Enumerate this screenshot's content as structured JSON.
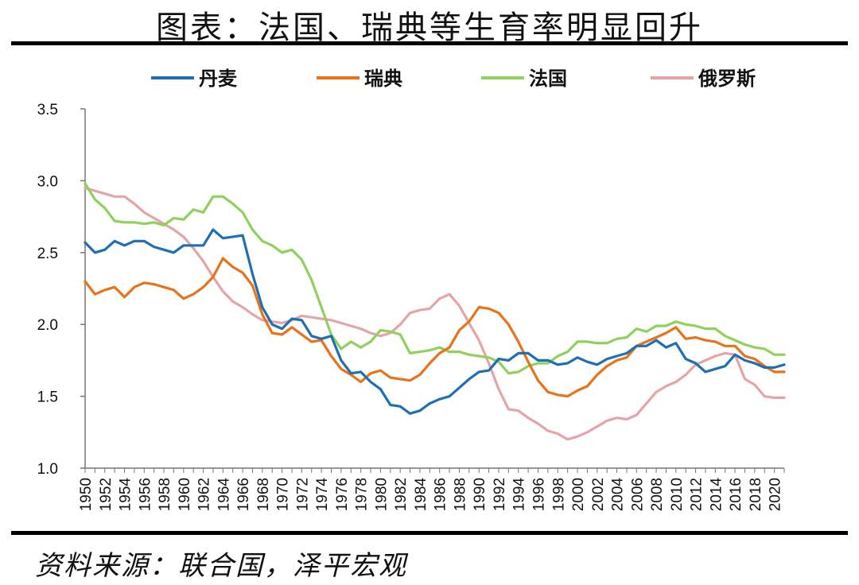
{
  "title": "图表：法国、瑞典等生育率明显回升",
  "source": "资料来源：联合国，泽平宏观",
  "chart_data": {
    "type": "line",
    "title": "图表：法国、瑞典等生育率明显回升",
    "xlabel": "",
    "ylabel": "",
    "xlim": [
      1950,
      2021
    ],
    "ylim": [
      1.0,
      3.5
    ],
    "yticks": [
      "1.0",
      "1.5",
      "2.0",
      "2.5",
      "3.0",
      "3.5"
    ],
    "xticks": [
      "1950",
      "1952",
      "1954",
      "1956",
      "1958",
      "1960",
      "1962",
      "1964",
      "1966",
      "1968",
      "1970",
      "1972",
      "1974",
      "1976",
      "1978",
      "1980",
      "1982",
      "1984",
      "1986",
      "1988",
      "1990",
      "1992",
      "1994",
      "1996",
      "1998",
      "2000",
      "2002",
      "2004",
      "2006",
      "2008",
      "2010",
      "2012",
      "2014",
      "2016",
      "2018",
      "2020"
    ],
    "grid": false,
    "legend_position": "top",
    "series": [
      {
        "name": "丹麦",
        "color": "#1f6fb5",
        "points": [
          [
            1950,
            2.57
          ],
          [
            1951,
            2.5
          ],
          [
            1952,
            2.52
          ],
          [
            1953,
            2.58
          ],
          [
            1954,
            2.55
          ],
          [
            1955,
            2.58
          ],
          [
            1956,
            2.58
          ],
          [
            1957,
            2.54
          ],
          [
            1958,
            2.52
          ],
          [
            1959,
            2.5
          ],
          [
            1960,
            2.55
          ],
          [
            1961,
            2.55
          ],
          [
            1962,
            2.55
          ],
          [
            1963,
            2.66
          ],
          [
            1964,
            2.6
          ],
          [
            1965,
            2.61
          ],
          [
            1966,
            2.62
          ],
          [
            1967,
            2.35
          ],
          [
            1968,
            2.12
          ],
          [
            1969,
            2.0
          ],
          [
            1970,
            1.97
          ],
          [
            1971,
            2.04
          ],
          [
            1972,
            2.03
          ],
          [
            1973,
            1.92
          ],
          [
            1974,
            1.9
          ],
          [
            1975,
            1.92
          ],
          [
            1976,
            1.75
          ],
          [
            1977,
            1.66
          ],
          [
            1978,
            1.67
          ],
          [
            1979,
            1.6
          ],
          [
            1980,
            1.55
          ],
          [
            1981,
            1.44
          ],
          [
            1982,
            1.43
          ],
          [
            1983,
            1.38
          ],
          [
            1984,
            1.4
          ],
          [
            1985,
            1.45
          ],
          [
            1986,
            1.48
          ],
          [
            1987,
            1.5
          ],
          [
            1988,
            1.56
          ],
          [
            1989,
            1.62
          ],
          [
            1990,
            1.67
          ],
          [
            1991,
            1.68
          ],
          [
            1992,
            1.76
          ],
          [
            1993,
            1.75
          ],
          [
            1994,
            1.8
          ],
          [
            1995,
            1.8
          ],
          [
            1996,
            1.75
          ],
          [
            1997,
            1.75
          ],
          [
            1998,
            1.72
          ],
          [
            1999,
            1.73
          ],
          [
            2000,
            1.77
          ],
          [
            2001,
            1.74
          ],
          [
            2002,
            1.72
          ],
          [
            2003,
            1.76
          ],
          [
            2004,
            1.78
          ],
          [
            2005,
            1.8
          ],
          [
            2006,
            1.85
          ],
          [
            2007,
            1.85
          ],
          [
            2008,
            1.89
          ],
          [
            2009,
            1.84
          ],
          [
            2010,
            1.87
          ],
          [
            2011,
            1.76
          ],
          [
            2012,
            1.73
          ],
          [
            2013,
            1.67
          ],
          [
            2014,
            1.69
          ],
          [
            2015,
            1.71
          ],
          [
            2016,
            1.79
          ],
          [
            2017,
            1.75
          ],
          [
            2018,
            1.73
          ],
          [
            2019,
            1.7
          ],
          [
            2020,
            1.7
          ],
          [
            2021,
            1.72
          ]
        ]
      },
      {
        "name": "瑞典",
        "color": "#e8731a",
        "points": [
          [
            1950,
            2.3
          ],
          [
            1951,
            2.21
          ],
          [
            1952,
            2.24
          ],
          [
            1953,
            2.26
          ],
          [
            1954,
            2.19
          ],
          [
            1955,
            2.26
          ],
          [
            1956,
            2.29
          ],
          [
            1957,
            2.28
          ],
          [
            1958,
            2.26
          ],
          [
            1959,
            2.24
          ],
          [
            1960,
            2.18
          ],
          [
            1961,
            2.21
          ],
          [
            1962,
            2.26
          ],
          [
            1963,
            2.33
          ],
          [
            1964,
            2.46
          ],
          [
            1965,
            2.4
          ],
          [
            1966,
            2.36
          ],
          [
            1967,
            2.27
          ],
          [
            1968,
            2.07
          ],
          [
            1969,
            1.94
          ],
          [
            1970,
            1.93
          ],
          [
            1971,
            1.98
          ],
          [
            1972,
            1.93
          ],
          [
            1973,
            1.88
          ],
          [
            1974,
            1.89
          ],
          [
            1975,
            1.78
          ],
          [
            1976,
            1.69
          ],
          [
            1977,
            1.65
          ],
          [
            1978,
            1.6
          ],
          [
            1979,
            1.66
          ],
          [
            1980,
            1.68
          ],
          [
            1981,
            1.63
          ],
          [
            1982,
            1.62
          ],
          [
            1983,
            1.61
          ],
          [
            1984,
            1.65
          ],
          [
            1985,
            1.73
          ],
          [
            1986,
            1.8
          ],
          [
            1987,
            1.84
          ],
          [
            1988,
            1.96
          ],
          [
            1989,
            2.02
          ],
          [
            1990,
            2.12
          ],
          [
            1991,
            2.11
          ],
          [
            1992,
            2.08
          ],
          [
            1993,
            2.0
          ],
          [
            1994,
            1.88
          ],
          [
            1995,
            1.74
          ],
          [
            1996,
            1.61
          ],
          [
            1997,
            1.53
          ],
          [
            1998,
            1.51
          ],
          [
            1999,
            1.5
          ],
          [
            2000,
            1.54
          ],
          [
            2001,
            1.57
          ],
          [
            2002,
            1.65
          ],
          [
            2003,
            1.71
          ],
          [
            2004,
            1.75
          ],
          [
            2005,
            1.77
          ],
          [
            2006,
            1.85
          ],
          [
            2007,
            1.88
          ],
          [
            2008,
            1.91
          ],
          [
            2009,
            1.94
          ],
          [
            2010,
            1.98
          ],
          [
            2011,
            1.9
          ],
          [
            2012,
            1.91
          ],
          [
            2013,
            1.89
          ],
          [
            2014,
            1.88
          ],
          [
            2015,
            1.85
          ],
          [
            2016,
            1.85
          ],
          [
            2017,
            1.78
          ],
          [
            2018,
            1.76
          ],
          [
            2019,
            1.71
          ],
          [
            2020,
            1.67
          ],
          [
            2021,
            1.67
          ]
        ]
      },
      {
        "name": "法国",
        "color": "#8fd15c",
        "points": [
          [
            1950,
            2.98
          ],
          [
            1951,
            2.87
          ],
          [
            1952,
            2.81
          ],
          [
            1953,
            2.72
          ],
          [
            1954,
            2.71
          ],
          [
            1955,
            2.71
          ],
          [
            1956,
            2.7
          ],
          [
            1957,
            2.71
          ],
          [
            1958,
            2.69
          ],
          [
            1959,
            2.74
          ],
          [
            1960,
            2.73
          ],
          [
            1961,
            2.8
          ],
          [
            1962,
            2.78
          ],
          [
            1963,
            2.89
          ],
          [
            1964,
            2.89
          ],
          [
            1965,
            2.84
          ],
          [
            1966,
            2.78
          ],
          [
            1967,
            2.66
          ],
          [
            1968,
            2.58
          ],
          [
            1969,
            2.55
          ],
          [
            1970,
            2.5
          ],
          [
            1971,
            2.52
          ],
          [
            1972,
            2.45
          ],
          [
            1973,
            2.31
          ],
          [
            1974,
            2.12
          ],
          [
            1975,
            1.93
          ],
          [
            1976,
            1.83
          ],
          [
            1977,
            1.88
          ],
          [
            1978,
            1.84
          ],
          [
            1979,
            1.88
          ],
          [
            1980,
            1.96
          ],
          [
            1981,
            1.95
          ],
          [
            1982,
            1.93
          ],
          [
            1983,
            1.8
          ],
          [
            1984,
            1.81
          ],
          [
            1985,
            1.82
          ],
          [
            1986,
            1.84
          ],
          [
            1987,
            1.81
          ],
          [
            1988,
            1.81
          ],
          [
            1989,
            1.79
          ],
          [
            1990,
            1.78
          ],
          [
            1991,
            1.77
          ],
          [
            1992,
            1.74
          ],
          [
            1993,
            1.66
          ],
          [
            1994,
            1.67
          ],
          [
            1995,
            1.71
          ],
          [
            1996,
            1.73
          ],
          [
            1997,
            1.73
          ],
          [
            1998,
            1.78
          ],
          [
            1999,
            1.81
          ],
          [
            2000,
            1.88
          ],
          [
            2001,
            1.88
          ],
          [
            2002,
            1.87
          ],
          [
            2003,
            1.87
          ],
          [
            2004,
            1.9
          ],
          [
            2005,
            1.91
          ],
          [
            2006,
            1.97
          ],
          [
            2007,
            1.95
          ],
          [
            2008,
            1.99
          ],
          [
            2009,
            1.99
          ],
          [
            2010,
            2.02
          ],
          [
            2011,
            2.0
          ],
          [
            2012,
            1.99
          ],
          [
            2013,
            1.97
          ],
          [
            2014,
            1.97
          ],
          [
            2015,
            1.92
          ],
          [
            2016,
            1.89
          ],
          [
            2017,
            1.86
          ],
          [
            2018,
            1.84
          ],
          [
            2019,
            1.83
          ],
          [
            2020,
            1.79
          ],
          [
            2021,
            1.79
          ]
        ]
      },
      {
        "name": "俄罗斯",
        "color": "#e3a5a8",
        "points": [
          [
            1950,
            2.95
          ],
          [
            1951,
            2.93
          ],
          [
            1952,
            2.91
          ],
          [
            1953,
            2.89
          ],
          [
            1954,
            2.89
          ],
          [
            1955,
            2.84
          ],
          [
            1956,
            2.78
          ],
          [
            1957,
            2.74
          ],
          [
            1958,
            2.7
          ],
          [
            1959,
            2.66
          ],
          [
            1960,
            2.61
          ],
          [
            1961,
            2.53
          ],
          [
            1962,
            2.44
          ],
          [
            1963,
            2.33
          ],
          [
            1964,
            2.23
          ],
          [
            1965,
            2.16
          ],
          [
            1966,
            2.12
          ],
          [
            1967,
            2.07
          ],
          [
            1968,
            2.03
          ],
          [
            1969,
            2.02
          ],
          [
            1970,
            2.01
          ],
          [
            1971,
            2.03
          ],
          [
            1972,
            2.06
          ],
          [
            1973,
            2.05
          ],
          [
            1974,
            2.04
          ],
          [
            1975,
            2.03
          ],
          [
            1976,
            2.01
          ],
          [
            1977,
            1.99
          ],
          [
            1978,
            1.97
          ],
          [
            1979,
            1.94
          ],
          [
            1980,
            1.92
          ],
          [
            1981,
            1.94
          ],
          [
            1982,
            2.0
          ],
          [
            1983,
            2.08
          ],
          [
            1984,
            2.1
          ],
          [
            1985,
            2.11
          ],
          [
            1986,
            2.18
          ],
          [
            1987,
            2.21
          ],
          [
            1988,
            2.13
          ],
          [
            1989,
            2.01
          ],
          [
            1990,
            1.89
          ],
          [
            1991,
            1.73
          ],
          [
            1992,
            1.55
          ],
          [
            1993,
            1.41
          ],
          [
            1994,
            1.4
          ],
          [
            1995,
            1.35
          ],
          [
            1996,
            1.31
          ],
          [
            1997,
            1.26
          ],
          [
            1998,
            1.24
          ],
          [
            1999,
            1.2
          ],
          [
            2000,
            1.22
          ],
          [
            2001,
            1.25
          ],
          [
            2002,
            1.29
          ],
          [
            2003,
            1.33
          ],
          [
            2004,
            1.35
          ],
          [
            2005,
            1.34
          ],
          [
            2006,
            1.37
          ],
          [
            2007,
            1.45
          ],
          [
            2008,
            1.53
          ],
          [
            2009,
            1.57
          ],
          [
            2010,
            1.6
          ],
          [
            2011,
            1.65
          ],
          [
            2012,
            1.72
          ],
          [
            2013,
            1.75
          ],
          [
            2014,
            1.78
          ],
          [
            2015,
            1.8
          ],
          [
            2016,
            1.79
          ],
          [
            2017,
            1.62
          ],
          [
            2018,
            1.58
          ],
          [
            2019,
            1.5
          ],
          [
            2020,
            1.49
          ],
          [
            2021,
            1.49
          ]
        ]
      }
    ]
  }
}
